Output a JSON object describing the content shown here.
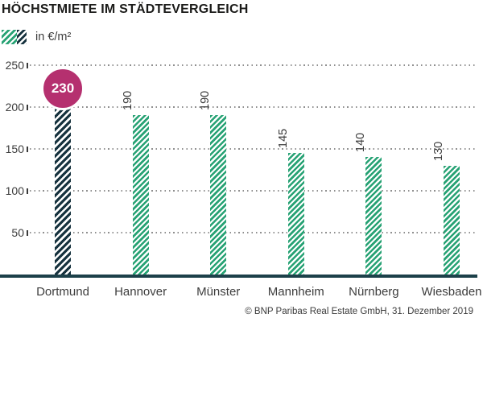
{
  "title": "HÖCHSTMIETE IM STÄDTEVERGLEICH",
  "legend": {
    "label": "in €/m²"
  },
  "footer": {
    "copyright": "© BNP Paribas Real Estate GmbH, 31. Dezember 2019"
  },
  "colors": {
    "green_hatch": "#27a274",
    "dark_hatch": "#16323e",
    "badge_magenta": "#b5306f",
    "axis_line": "#1c4049",
    "grid_dots": "#8f8f8f",
    "label_text": "#3d3d3d",
    "title_text": "#1b1b19"
  },
  "chart_data": {
    "type": "bar",
    "title": "HÖCHSTMIETE IM STÄDTEVERGLEICH",
    "unit_label": "in €/m²",
    "categories": [
      "Dortmund",
      "Hannover",
      "Münster",
      "Mannheim",
      "Nürnberg",
      "Wiesbaden"
    ],
    "values": [
      230,
      190,
      190,
      145,
      140,
      130
    ],
    "ylim": [
      0,
      250
    ],
    "yticks": [
      50,
      100,
      150,
      200,
      250
    ],
    "grid": "horizontal dotted",
    "legend_position": "top-left",
    "highlight": {
      "category": "Dortmund",
      "value": 230,
      "style": "dark hatched bar with magenta circle badge"
    },
    "bar_style": "diagonal hatch, green for regular bars",
    "value_labels": "rotated 90° above green bars"
  }
}
